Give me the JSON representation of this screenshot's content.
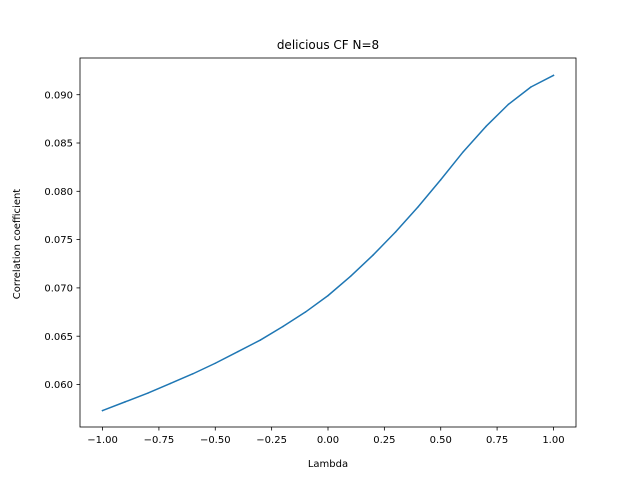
{
  "chart_data": {
    "type": "line",
    "title": "delicious CF N=8",
    "xlabel": "Lambda",
    "ylabel": "Correlation coefficient",
    "xlim": [
      -1.1,
      1.1
    ],
    "ylim": [
      0.0556,
      0.0938
    ],
    "xticks": [
      -1.0,
      -0.75,
      -0.5,
      -0.25,
      0.0,
      0.25,
      0.5,
      0.75,
      1.0
    ],
    "xtick_labels": [
      "−1.00",
      "−0.75",
      "−0.50",
      "−0.25",
      "0.00",
      "0.25",
      "0.50",
      "0.75",
      "1.00"
    ],
    "yticks": [
      0.06,
      0.065,
      0.07,
      0.075,
      0.08,
      0.085,
      0.09
    ],
    "ytick_labels": [
      "0.060",
      "0.065",
      "0.070",
      "0.075",
      "0.080",
      "0.085",
      "0.090"
    ],
    "grid": false,
    "series": [
      {
        "color": "#1f77b4",
        "x": [
          -1.0,
          -0.9,
          -0.8,
          -0.7,
          -0.6,
          -0.5,
          -0.4,
          -0.3,
          -0.2,
          -0.1,
          0.0,
          0.1,
          0.2,
          0.3,
          0.4,
          0.5,
          0.6,
          0.7,
          0.8,
          0.9,
          1.0
        ],
        "y": [
          0.0573,
          0.0582,
          0.0591,
          0.0601,
          0.0611,
          0.0622,
          0.0634,
          0.0646,
          0.066,
          0.0675,
          0.0692,
          0.0712,
          0.0734,
          0.0758,
          0.0784,
          0.0812,
          0.0841,
          0.0867,
          0.089,
          0.0908,
          0.092
        ]
      }
    ]
  }
}
